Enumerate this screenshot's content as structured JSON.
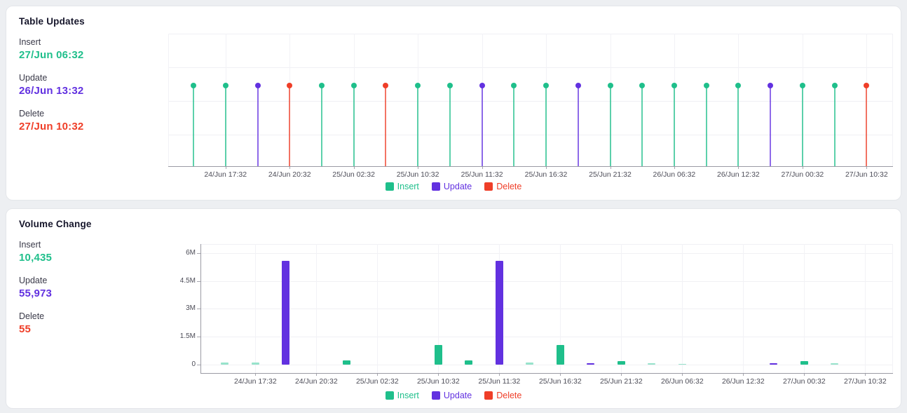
{
  "colors": {
    "insert": "#1fbf8b",
    "update": "#6231e0",
    "delete": "#ef3e28",
    "insert_light": "#97e3cb"
  },
  "legend": [
    {
      "label": "Insert",
      "series": "insert"
    },
    {
      "label": "Update",
      "series": "update"
    },
    {
      "label": "Delete",
      "series": "delete"
    }
  ],
  "panels": {
    "table_updates": {
      "title": "Table Updates",
      "stats": [
        {
          "label": "Insert",
          "value": "27/Jun 06:32",
          "series": "insert"
        },
        {
          "label": "Update",
          "value": "26/Jun 13:32",
          "series": "update"
        },
        {
          "label": "Delete",
          "value": "27/Jun 10:32",
          "series": "delete"
        }
      ]
    },
    "volume_change": {
      "title": "Volume Change",
      "stats": [
        {
          "label": "Insert",
          "value": "10,435",
          "series": "insert"
        },
        {
          "label": "Update",
          "value": "55,973",
          "series": "update"
        },
        {
          "label": "Delete",
          "value": "55",
          "series": "delete"
        }
      ]
    }
  },
  "chart_data": [
    {
      "type": "scatter",
      "subtype": "event-stem-timeline",
      "title": "Table Updates",
      "xlabel": "",
      "ylabel": "",
      "legend_position": "bottom",
      "grid": true,
      "slots": 22,
      "x_tick_labels": [
        {
          "slot": 2,
          "label": "24/Jun 17:32"
        },
        {
          "slot": 4,
          "label": "24/Jun 20:32"
        },
        {
          "slot": 6,
          "label": "25/Jun 02:32"
        },
        {
          "slot": 8,
          "label": "25/Jun 10:32"
        },
        {
          "slot": 10,
          "label": "25/Jun 11:32"
        },
        {
          "slot": 12,
          "label": "25/Jun 16:32"
        },
        {
          "slot": 14,
          "label": "25/Jun 21:32"
        },
        {
          "slot": 16,
          "label": "26/Jun 06:32"
        },
        {
          "slot": 18,
          "label": "26/Jun 12:32"
        },
        {
          "slot": 20,
          "label": "27/Jun 00:32"
        },
        {
          "slot": 22,
          "label": "27/Jun 10:32"
        }
      ],
      "events": [
        {
          "slot": 1,
          "series": "insert"
        },
        {
          "slot": 2,
          "series": "insert"
        },
        {
          "slot": 3,
          "series": "update"
        },
        {
          "slot": 4,
          "series": "delete"
        },
        {
          "slot": 5,
          "series": "insert"
        },
        {
          "slot": 6,
          "series": "insert"
        },
        {
          "slot": 7,
          "series": "delete"
        },
        {
          "slot": 8,
          "series": "insert"
        },
        {
          "slot": 9,
          "series": "insert"
        },
        {
          "slot": 10,
          "series": "update"
        },
        {
          "slot": 11,
          "series": "insert"
        },
        {
          "slot": 12,
          "series": "insert"
        },
        {
          "slot": 13,
          "series": "update"
        },
        {
          "slot": 14,
          "series": "insert"
        },
        {
          "slot": 15,
          "series": "insert"
        },
        {
          "slot": 16,
          "series": "insert"
        },
        {
          "slot": 17,
          "series": "insert"
        },
        {
          "slot": 18,
          "series": "insert"
        },
        {
          "slot": 19,
          "series": "update"
        },
        {
          "slot": 20,
          "series": "insert"
        },
        {
          "slot": 21,
          "series": "insert"
        },
        {
          "slot": 22,
          "series": "delete"
        }
      ]
    },
    {
      "type": "bar",
      "title": "Volume Change",
      "xlabel": "",
      "ylabel": "",
      "legend_position": "bottom",
      "grid": true,
      "slots": 22,
      "ylim": [
        0,
        6900000
      ],
      "y_tick_labels": [
        {
          "label": "6M",
          "value": 6000000
        },
        {
          "label": "4.5M",
          "value": 4500000
        },
        {
          "label": "3M",
          "value": 3000000
        },
        {
          "label": "1.5M",
          "value": 1500000
        },
        {
          "label": "0",
          "value": 0
        }
      ],
      "x_tick_labels": [
        {
          "slot": 2,
          "label": "24/Jun 17:32"
        },
        {
          "slot": 4,
          "label": "24/Jun 20:32"
        },
        {
          "slot": 6,
          "label": "25/Jun 02:32"
        },
        {
          "slot": 8,
          "label": "25/Jun 10:32"
        },
        {
          "slot": 10,
          "label": "25/Jun 11:32"
        },
        {
          "slot": 12,
          "label": "25/Jun 16:32"
        },
        {
          "slot": 14,
          "label": "25/Jun 21:32"
        },
        {
          "slot": 16,
          "label": "26/Jun 06:32"
        },
        {
          "slot": 18,
          "label": "26/Jun 12:32"
        },
        {
          "slot": 20,
          "label": "27/Jun 00:32"
        },
        {
          "slot": 22,
          "label": "27/Jun 10:32"
        }
      ],
      "bars": [
        {
          "slot": 1,
          "series": "insert",
          "value": 90000,
          "light": true
        },
        {
          "slot": 2,
          "series": "insert",
          "value": 90000,
          "light": true
        },
        {
          "slot": 3,
          "series": "update",
          "value": 5600000,
          "light": false
        },
        {
          "slot": 5,
          "series": "insert",
          "value": 210000,
          "light": false
        },
        {
          "slot": 8,
          "series": "insert",
          "value": 1050000,
          "light": false
        },
        {
          "slot": 9,
          "series": "insert",
          "value": 210000,
          "light": false
        },
        {
          "slot": 10,
          "series": "update",
          "value": 5600000,
          "light": false
        },
        {
          "slot": 11,
          "series": "insert",
          "value": 90000,
          "light": true
        },
        {
          "slot": 12,
          "series": "insert",
          "value": 1050000,
          "light": false
        },
        {
          "slot": 13,
          "series": "update",
          "value": 80000,
          "light": false
        },
        {
          "slot": 14,
          "series": "insert",
          "value": 180000,
          "light": false
        },
        {
          "slot": 15,
          "series": "insert",
          "value": 60000,
          "light": true
        },
        {
          "slot": 16,
          "series": "insert",
          "value": 40000,
          "light": true
        },
        {
          "slot": 19,
          "series": "update",
          "value": 80000,
          "light": false
        },
        {
          "slot": 20,
          "series": "insert",
          "value": 180000,
          "light": false
        },
        {
          "slot": 21,
          "series": "insert",
          "value": 60000,
          "light": true
        }
      ]
    }
  ]
}
